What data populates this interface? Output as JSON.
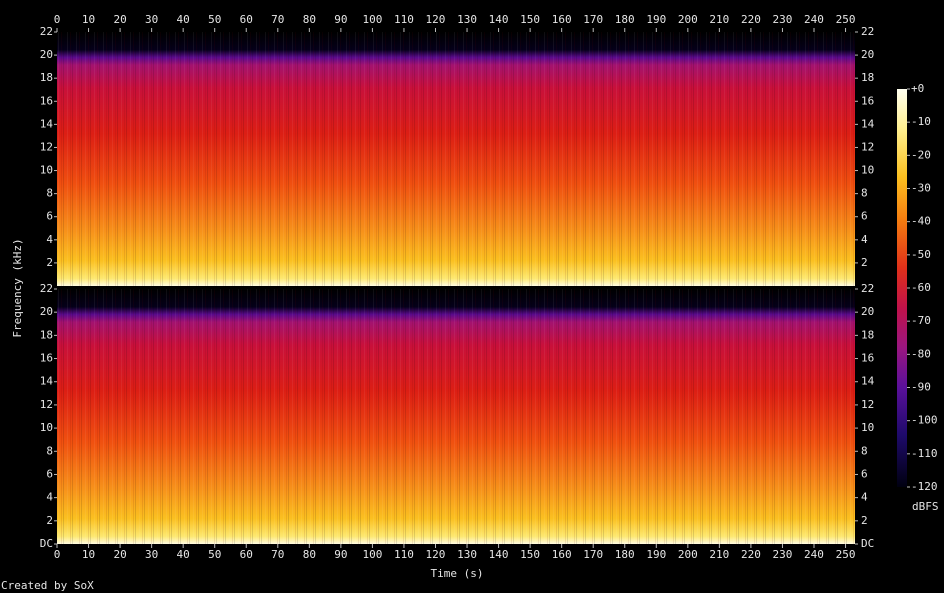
{
  "chart_data": {
    "type": "spectrogram",
    "xlabel": "Time (s)",
    "ylabel": "Frequency (kHz)",
    "footer": "Created by SoX",
    "xlim": [
      0,
      253
    ],
    "xticks": [
      0,
      10,
      20,
      30,
      40,
      50,
      60,
      70,
      80,
      90,
      100,
      110,
      120,
      130,
      140,
      150,
      160,
      170,
      180,
      190,
      200,
      210,
      220,
      230,
      240,
      250
    ],
    "panels": [
      {
        "ylim": [
          0,
          22
        ],
        "yticks": [
          2,
          4,
          6,
          8,
          10,
          12,
          14,
          16,
          18,
          20,
          22
        ]
      },
      {
        "ylim": [
          0,
          22
        ],
        "yticks": [
          {
            "value": 0,
            "label": "DC"
          },
          2,
          4,
          6,
          8,
          10,
          12,
          14,
          16,
          18,
          20,
          22
        ]
      }
    ],
    "colorbar": {
      "label": "dBFS",
      "lim": [
        -120,
        0
      ],
      "ticks": [
        {
          "value": 0,
          "label": "+0"
        },
        -10,
        -20,
        -30,
        -40,
        -50,
        -60,
        -70,
        -80,
        -90,
        -100,
        -110,
        -120
      ]
    }
  }
}
